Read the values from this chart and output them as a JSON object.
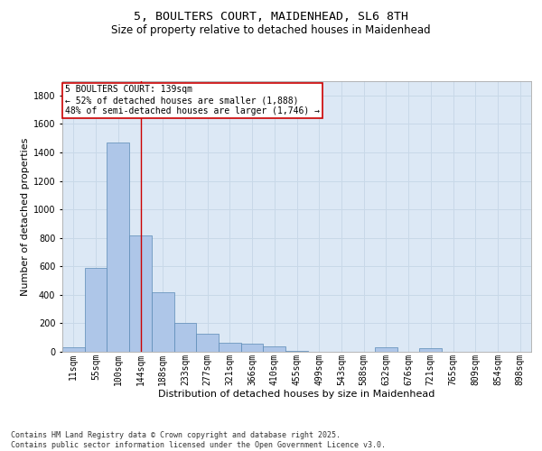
{
  "title_line1": "5, BOULTERS COURT, MAIDENHEAD, SL6 8TH",
  "title_line2": "Size of property relative to detached houses in Maidenhead",
  "xlabel": "Distribution of detached houses by size in Maidenhead",
  "ylabel": "Number of detached properties",
  "categories": [
    "11sqm",
    "55sqm",
    "100sqm",
    "144sqm",
    "188sqm",
    "233sqm",
    "277sqm",
    "321sqm",
    "366sqm",
    "410sqm",
    "455sqm",
    "499sqm",
    "543sqm",
    "588sqm",
    "632sqm",
    "676sqm",
    "721sqm",
    "765sqm",
    "809sqm",
    "854sqm",
    "898sqm"
  ],
  "values": [
    30,
    590,
    1470,
    820,
    415,
    205,
    125,
    65,
    55,
    35,
    5,
    0,
    0,
    0,
    30,
    0,
    25,
    0,
    0,
    0,
    0
  ],
  "bar_color": "#aec6e8",
  "bar_edge_color": "#5a8ab5",
  "highlight_bar_index": 3,
  "highlight_line_color": "#cc0000",
  "ylim": [
    0,
    1900
  ],
  "yticks": [
    0,
    200,
    400,
    600,
    800,
    1000,
    1200,
    1400,
    1600,
    1800
  ],
  "annotation_box_text": "5 BOULTERS COURT: 139sqm\n← 52% of detached houses are smaller (1,888)\n48% of semi-detached houses are larger (1,746) →",
  "annotation_box_facecolor": "white",
  "annotation_box_edgecolor": "#cc0000",
  "grid_color": "#c8d8e8",
  "background_color": "#dce8f5",
  "footer_line1": "Contains HM Land Registry data © Crown copyright and database right 2025.",
  "footer_line2": "Contains public sector information licensed under the Open Government Licence v3.0.",
  "title_fontsize": 9.5,
  "subtitle_fontsize": 8.5,
  "axis_label_fontsize": 8,
  "tick_fontsize": 7,
  "annotation_fontsize": 7,
  "footer_fontsize": 6
}
